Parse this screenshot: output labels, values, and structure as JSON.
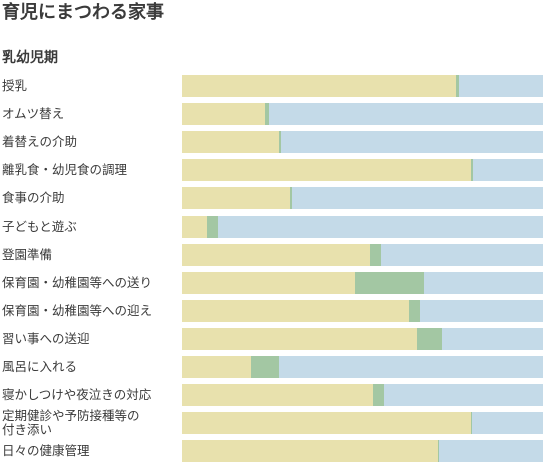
{
  "page_title": "育児にまつわる家事",
  "section_title": "乳幼児期",
  "colors": {
    "wife": "#e8e1ad",
    "both": "#a3c7a3",
    "husband": "#c4dae8"
  },
  "chart_data": {
    "type": "bar",
    "orientation": "horizontal",
    "stacked": true,
    "normalized_to": 100,
    "title": "",
    "categories": [
      "授乳",
      "オムツ替え",
      "着替えの介助",
      "離乳食・幼児食の調理",
      "食事の介助",
      "子どもと遊ぶ",
      "登園準備",
      "保育園・幼稚園等への送り",
      "保育園・幼稚園等への迎え",
      "習い事への送迎",
      "風呂に入れる",
      "寝かしつけや夜泣きの対応",
      "定期健診や予防接種等の\n付き添い",
      "日々の健康管理"
    ],
    "series": [
      {
        "color": "#e8e1ad",
        "values": [
          76,
          23,
          27,
          80,
          30,
          7,
          52,
          48,
          63,
          65,
          19,
          53,
          80,
          71
        ]
      },
      {
        "color": "#a3c7a3",
        "values": [
          0.6,
          1,
          0.5,
          0.5,
          0.5,
          3,
          3,
          19,
          3,
          7,
          8,
          3,
          0.4,
          0.3
        ]
      },
      {
        "color": "#c4dae8",
        "values": [
          23.4,
          76,
          72.5,
          19.5,
          69.5,
          90,
          45,
          33,
          34,
          28,
          73,
          44,
          19.6,
          28.7
        ]
      }
    ],
    "xlim": [
      0,
      100
    ],
    "grid": false,
    "legend": "none"
  }
}
